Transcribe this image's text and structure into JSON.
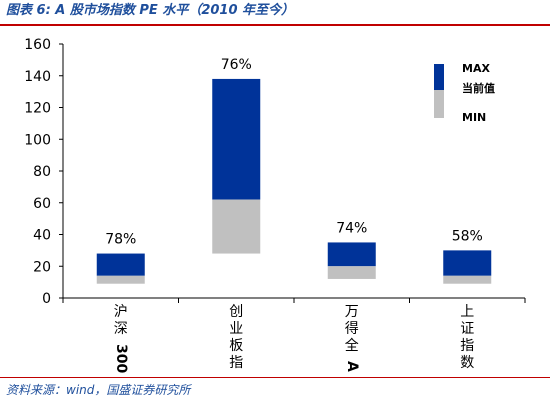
{
  "header": {
    "title": "图表 6:  A 股市场指数 PE 水平（2010 年至今）"
  },
  "footer": {
    "source": "资料来源：wind，国盛证券研究所"
  },
  "chart_data": {
    "type": "bar",
    "subtype": "floating-range",
    "categories": [
      [
        "沪",
        "深",
        "300"
      ],
      [
        "创",
        "业",
        "板",
        "指"
      ],
      [
        "万",
        "得",
        "全",
        "A"
      ],
      [
        "上",
        "证",
        "指",
        "数"
      ]
    ],
    "series": [
      {
        "name": "MAX",
        "color": "#003399",
        "values": [
          28,
          138,
          35,
          30
        ]
      },
      {
        "name": "当前值",
        "color": "#003399",
        "values": [
          14,
          62,
          20,
          14
        ]
      },
      {
        "name": "MIN",
        "color": "#c0c0c0",
        "values": [
          9,
          28,
          12,
          9
        ]
      }
    ],
    "data_labels": [
      "78%",
      "76%",
      "74%",
      "58%"
    ],
    "yticks": [
      0,
      20,
      40,
      60,
      80,
      100,
      120,
      140,
      160
    ],
    "ylim": [
      0,
      160
    ],
    "grid": false,
    "legend_position": "top-right",
    "colors": {
      "upper": "#003399",
      "lower": "#c0c0c0",
      "text": "#1f4f9c",
      "rule": "#c00000"
    }
  }
}
